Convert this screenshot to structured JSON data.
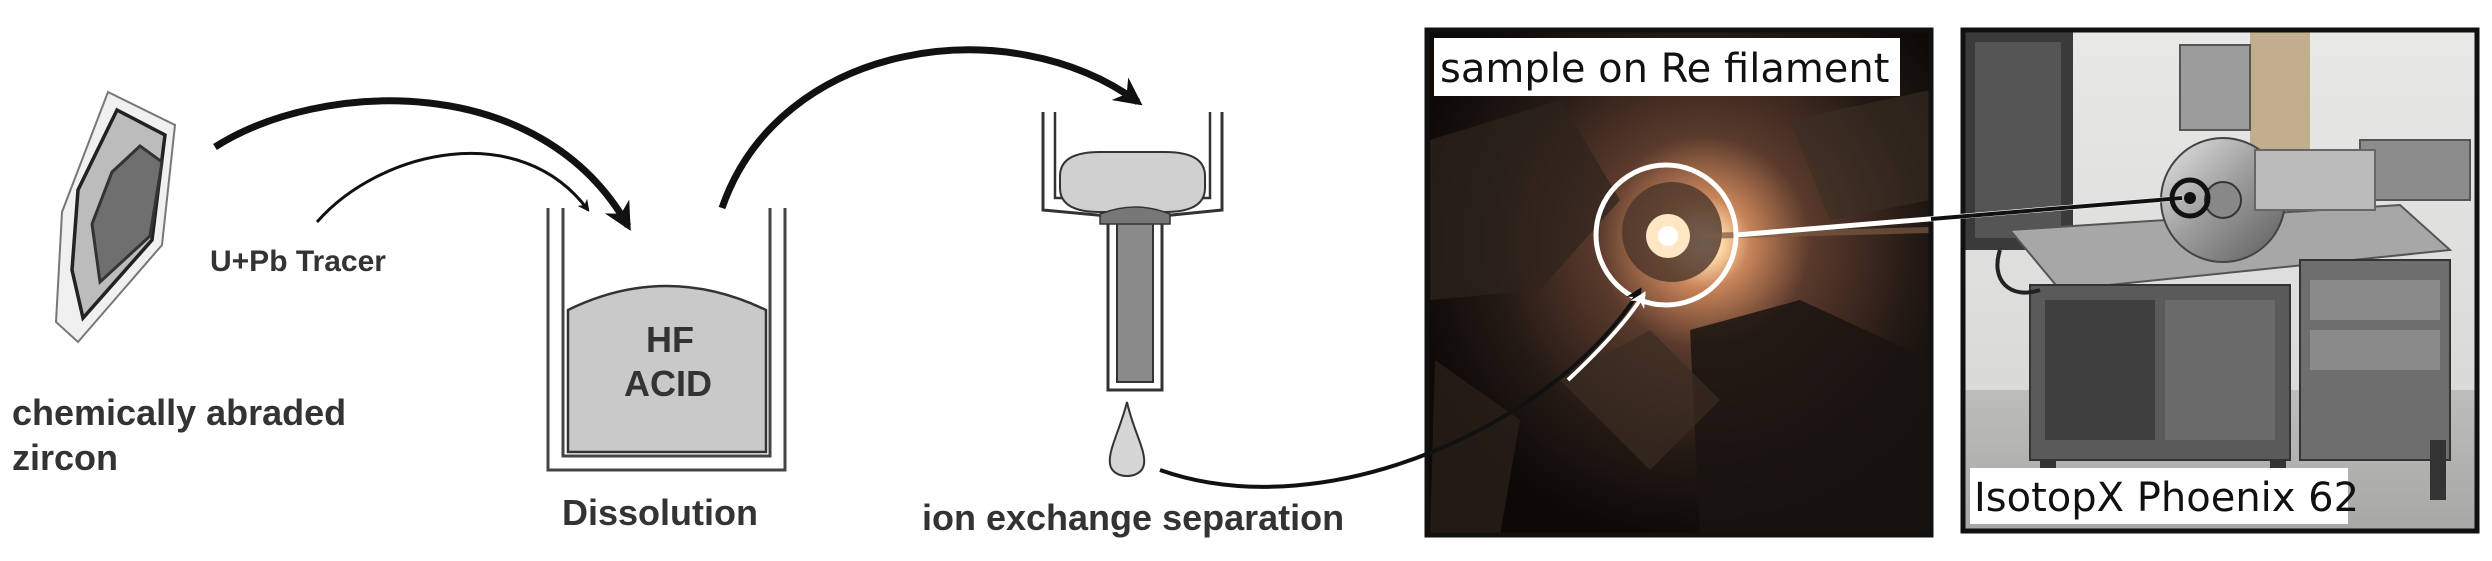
{
  "labels": {
    "zircon_line1": "chemically abraded",
    "zircon_line2": "zircon",
    "tracer": "U+Pb Tracer",
    "acid_line1": "HF",
    "acid_line2": "ACID",
    "dissolution": "Dissolution",
    "ion_exchange": "ion exchange separation",
    "filament_caption": "sample on Re filament",
    "instrument_caption": "IsotopX Phoenix 62"
  }
}
